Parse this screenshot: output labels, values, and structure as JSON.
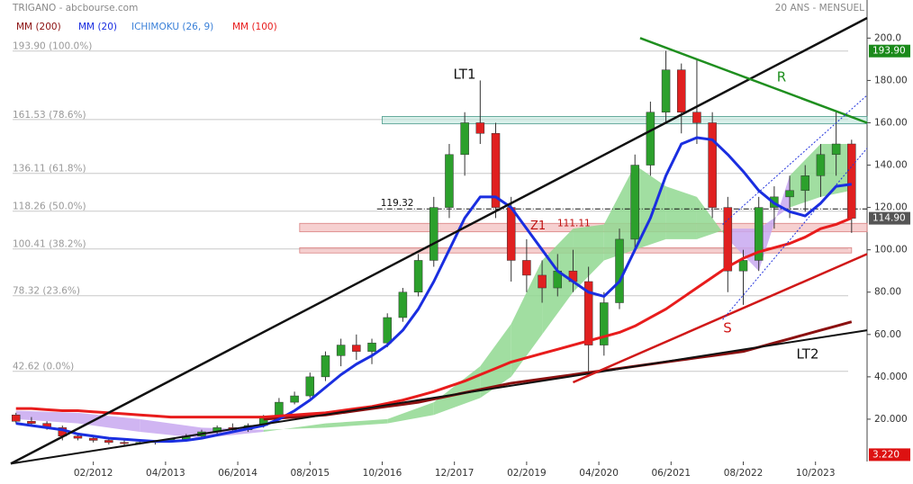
{
  "chart_data": {
    "type": "candlestick",
    "title": "TRIGANO - abcbourse.com",
    "subtitle": "20 ANS - MENSUEL",
    "x": [
      "2010-11",
      "2011-02",
      "2011-05",
      "2011-08",
      "2011-11",
      "2012-02",
      "2012-05",
      "2012-08",
      "2012-11",
      "2013-02",
      "2013-05",
      "2013-08",
      "2013-11",
      "2014-02",
      "2014-05",
      "2014-08",
      "2014-11",
      "2015-02",
      "2015-05",
      "2015-08",
      "2015-11",
      "2016-02",
      "2016-05",
      "2016-08",
      "2016-11",
      "2017-02",
      "2017-05",
      "2017-08",
      "2017-11",
      "2018-02",
      "2018-05",
      "2018-08",
      "2018-11",
      "2019-02",
      "2019-05",
      "2019-08",
      "2019-11",
      "2020-02",
      "2020-05",
      "2020-08",
      "2020-11",
      "2021-02",
      "2021-05",
      "2021-08",
      "2021-11",
      "2022-02",
      "2022-05",
      "2022-08",
      "2022-11",
      "2023-02",
      "2023-05",
      "2023-08",
      "2023-11",
      "2024-02",
      "2024-05"
    ],
    "open": [
      22,
      19,
      18,
      16,
      12,
      11,
      10,
      9,
      8.5,
      9,
      9.5,
      10.5,
      12,
      14,
      16,
      15,
      17,
      21,
      28,
      31,
      40,
      50,
      55,
      52,
      56,
      68,
      80,
      95,
      120,
      145,
      160,
      155,
      120,
      95,
      88,
      82,
      90,
      85,
      55,
      75,
      105,
      140,
      165,
      185,
      165,
      160,
      120,
      90,
      95,
      120,
      125,
      128,
      135,
      145,
      150
    ],
    "high": [
      23,
      21,
      19,
      17,
      13,
      12,
      11,
      10,
      10,
      10,
      11,
      13,
      15,
      17,
      18,
      18,
      22,
      30,
      33,
      42,
      52,
      58,
      60,
      58,
      70,
      82,
      98,
      125,
      150,
      165,
      180,
      160,
      125,
      105,
      95,
      98,
      100,
      92,
      80,
      110,
      145,
      170,
      194,
      188,
      190,
      165,
      125,
      100,
      125,
      130,
      135,
      140,
      150,
      165,
      152
    ],
    "low": [
      18,
      17,
      15,
      10,
      10,
      9,
      8,
      7.5,
      8,
      8,
      9,
      10,
      11,
      13,
      14,
      14,
      16,
      20,
      27,
      30,
      38,
      45,
      48,
      46,
      54,
      66,
      78,
      92,
      115,
      135,
      150,
      115,
      85,
      80,
      75,
      78,
      80,
      42,
      50,
      72,
      100,
      135,
      160,
      155,
      150,
      115,
      80,
      74,
      90,
      110,
      115,
      118,
      125,
      135,
      108
    ],
    "close": [
      19,
      18,
      16,
      12,
      11,
      10,
      9,
      8.5,
      9,
      9.5,
      10.5,
      12,
      14,
      16,
      15,
      17,
      21,
      28,
      31,
      40,
      50,
      55,
      52,
      56,
      68,
      80,
      95,
      120,
      145,
      160,
      155,
      120,
      95,
      88,
      82,
      90,
      85,
      55,
      75,
      105,
      140,
      165,
      185,
      165,
      160,
      120,
      90,
      95,
      120,
      125,
      128,
      135,
      145,
      150,
      114.9
    ],
    "up_color": "#2ca02c",
    "down_color": "#e02020",
    "series": [
      {
        "name": "MM (200)",
        "color": "#8b1010",
        "values": [
          null,
          null,
          null,
          null,
          null,
          null,
          null,
          null,
          null,
          null,
          null,
          null,
          null,
          null,
          null,
          null,
          20,
          20.5,
          21,
          21.5,
          22,
          23,
          24,
          25,
          26,
          27,
          28,
          29.5,
          31,
          32.5,
          34,
          35.5,
          37,
          38,
          39,
          40,
          41,
          42,
          43,
          44,
          45,
          46,
          47,
          48,
          49,
          50,
          51,
          52,
          54,
          56,
          58,
          60,
          62,
          64,
          66
        ]
      },
      {
        "name": "MM (20)",
        "color": "#1a2ee0",
        "values": [
          18,
          17,
          16,
          15,
          13,
          12,
          11,
          10.5,
          10,
          9.5,
          9.5,
          10,
          11,
          12.5,
          14,
          15.5,
          17,
          20,
          24,
          29,
          35,
          41,
          46,
          50,
          55,
          62,
          72,
          85,
          100,
          115,
          125,
          125,
          120,
          110,
          100,
          90,
          85,
          80,
          78,
          85,
          100,
          115,
          135,
          150,
          153,
          152,
          145,
          137,
          128,
          122,
          118,
          116,
          122,
          130,
          131
        ]
      },
      {
        "name": "MM (100)",
        "color": "#e81c1c",
        "values": [
          25,
          25,
          24.5,
          24,
          24,
          23.5,
          23,
          22.5,
          22,
          21.5,
          21,
          21,
          21,
          21,
          21,
          21,
          21,
          21.5,
          22,
          22.5,
          23,
          24,
          25,
          26,
          27.5,
          29,
          31,
          33,
          35.5,
          38,
          41,
          44,
          47,
          49,
          51,
          53,
          55,
          57,
          59,
          61,
          64,
          68,
          72,
          77,
          82,
          87,
          92,
          96,
          99,
          101,
          103,
          106,
          110,
          112,
          115
        ]
      }
    ],
    "ichimoku": {
      "name": "ICHIMOKU (26, 9)",
      "color": "#3a80d8",
      "up_color": "#90d890",
      "down_color": "#c8a8f0",
      "x": [
        "2010-11",
        "2011-11",
        "2012-11",
        "2013-11",
        "2014-11",
        "2015-11",
        "2016-11",
        "2017-08",
        "2018-05",
        "2018-11",
        "2019-05",
        "2019-11",
        "2020-05",
        "2020-11",
        "2021-05",
        "2021-11",
        "2022-05",
        "2022-11",
        "2023-05",
        "2023-11",
        "2024-05"
      ],
      "span_a": [
        20,
        18,
        14,
        11,
        14,
        18,
        20,
        28,
        45,
        65,
        95,
        110,
        112,
        140,
        130,
        125,
        105,
        90,
        135,
        150,
        150
      ],
      "span_b": [
        24,
        23,
        20,
        16,
        15,
        16,
        18,
        22,
        30,
        40,
        60,
        80,
        95,
        100,
        105,
        105,
        110,
        110,
        120,
        125,
        128
      ]
    },
    "fib_levels": [
      {
        "value": 193.9,
        "label": "193.90 (100.0%)"
      },
      {
        "value": 161.53,
        "label": "161.53 (78.6%)"
      },
      {
        "value": 136.11,
        "label": "136.11 (61.8%)"
      },
      {
        "value": 118.26,
        "label": "118.26 (50.0%)"
      },
      {
        "value": 100.41,
        "label": "100.41 (38.2%)"
      },
      {
        "value": 78.32,
        "label": "78.32 (23.6%)"
      },
      {
        "value": 42.62,
        "label": "42.62 (0.0%)"
      }
    ],
    "trendlines": [
      {
        "label": "LT1",
        "color": "#111111",
        "x": [
          "2010-10",
          "2024-08"
        ],
        "y": [
          -1,
          209.5
        ]
      },
      {
        "label": "LT2",
        "color": "#111111",
        "x": [
          "2010-10",
          "2024-08"
        ],
        "y": [
          -1,
          62
        ]
      },
      {
        "label": "R",
        "color": "#1f8f1f",
        "x": [
          "2020-12",
          "2024-08"
        ],
        "y": [
          200,
          160
        ]
      },
      {
        "label": "S",
        "color": "#d01818",
        "x": [
          "2019-11",
          "2024-08"
        ],
        "y": [
          37.4,
          98
        ]
      }
    ],
    "channel": {
      "color": "#2233dd",
      "x": [
        "2022-04",
        "2024-08"
      ],
      "upper": [
        112,
        173
      ],
      "lower": [
        67,
        148
      ]
    },
    "zones": [
      {
        "label": "Z1",
        "value": 111.11,
        "low": 108.5,
        "high": 112.5,
        "x": [
          "2015-06",
          "2024-08"
        ],
        "color": "#f0b0b0"
      },
      {
        "low": 98.5,
        "high": 101,
        "x": [
          "2015-06",
          "2024-05"
        ],
        "color": "#f0b0b0"
      },
      {
        "low": 159.5,
        "high": 163,
        "x": [
          "2016-10",
          "2024-08"
        ],
        "color": "#bfe6dc"
      }
    ],
    "level": {
      "value": 119.32,
      "x": [
        "2016-09",
        "2024-08"
      ]
    },
    "last_price": {
      "value": 114.9,
      "label": "114.90",
      "color": "#555555"
    },
    "high_price": {
      "value": 193.9,
      "label": "193.90",
      "color": "#1a8a1a"
    },
    "volume": {
      "value": 3.22,
      "label": "3.220",
      "color": "#dd1111"
    },
    "xlim": [
      "2010-10",
      "2024-08"
    ],
    "xticks": [
      {
        "value": "2012-02",
        "label": "02/2012"
      },
      {
        "value": "2013-04",
        "label": "04/2013"
      },
      {
        "value": "2014-06",
        "label": "06/2014"
      },
      {
        "value": "2015-08",
        "label": "08/2015"
      },
      {
        "value": "2016-10",
        "label": "10/2016"
      },
      {
        "value": "2017-12",
        "label": "12/2017"
      },
      {
        "value": "2019-02",
        "label": "02/2019"
      },
      {
        "value": "2020-04",
        "label": "04/2020"
      },
      {
        "value": "2021-06",
        "label": "06/2021"
      },
      {
        "value": "2022-08",
        "label": "08/2022"
      },
      {
        "value": "2023-10",
        "label": "10/2023"
      }
    ],
    "ylim": [
      0,
      218
    ],
    "yticks": [
      {
        "value": 20,
        "label": "20.000"
      },
      {
        "value": 40,
        "label": "40.000"
      },
      {
        "value": 60,
        "label": "60.00"
      },
      {
        "value": 80,
        "label": "80.00"
      },
      {
        "value": 100,
        "label": "100.00"
      },
      {
        "value": 120,
        "label": "120.00"
      },
      {
        "value": 140,
        "label": "140.00"
      },
      {
        "value": 160,
        "label": "160.00"
      },
      {
        "value": 180,
        "label": "180.00"
      },
      {
        "value": 200,
        "label": "200.0"
      }
    ]
  }
}
